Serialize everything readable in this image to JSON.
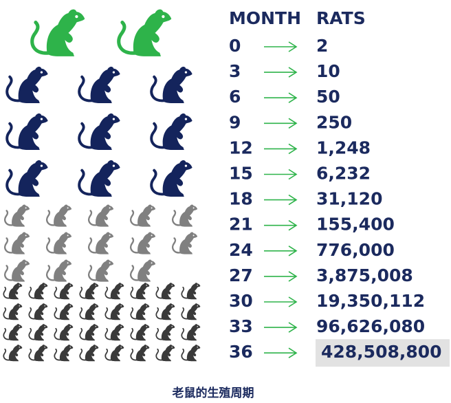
{
  "table": {
    "headers": [
      "MONTH",
      "RATS"
    ],
    "rows": [
      [
        "0",
        "2"
      ],
      [
        "3",
        "10"
      ],
      [
        "6",
        "50"
      ],
      [
        "9",
        "250"
      ],
      [
        "12",
        "1,248"
      ],
      [
        "15",
        "6,232"
      ],
      [
        "18",
        "31,120"
      ],
      [
        "21",
        "155,400"
      ],
      [
        "24",
        "776,000"
      ],
      [
        "27",
        "3,875,008"
      ],
      [
        "30",
        "19,350,112"
      ],
      [
        "33",
        "96,626,080"
      ],
      [
        "36",
        "428,508,800"
      ]
    ]
  },
  "caption": "老鼠的生殖周期"
}
